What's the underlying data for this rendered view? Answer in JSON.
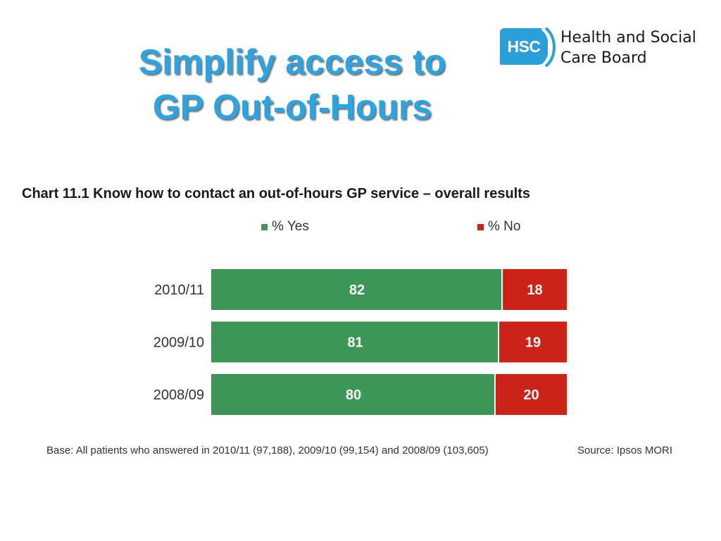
{
  "slide": {
    "title_line1": "Simplify access to",
    "title_line2": "GP Out-of-Hours"
  },
  "logo": {
    "badge": "HSC",
    "line1": "Health and Social",
    "line2": "Care Board"
  },
  "colors": {
    "title": "#2aa5e2",
    "yes": "#3c9656",
    "no": "#cc2218",
    "logo": "#2a9fd8"
  },
  "chart_data": {
    "type": "bar",
    "orientation": "horizontal",
    "stacked": true,
    "title": "Chart 11.1 Know how to contact an out-of-hours GP service – overall results",
    "categories": [
      "2010/11",
      "2009/10",
      "2008/09"
    ],
    "series": [
      {
        "name": "% Yes",
        "values": [
          82,
          81,
          80
        ],
        "color": "#3c9656"
      },
      {
        "name": "% No",
        "values": [
          18,
          19,
          20
        ],
        "color": "#cc2218"
      }
    ],
    "xlim": [
      0,
      100
    ],
    "grid": false,
    "legend_position": "top",
    "data_labels": true
  },
  "footer": {
    "base": "Base: All patients who answered in 2010/11 (97,188), 2009/10 (99,154) and 2008/09 (103,605)",
    "source": "Source: Ipsos MORI"
  }
}
